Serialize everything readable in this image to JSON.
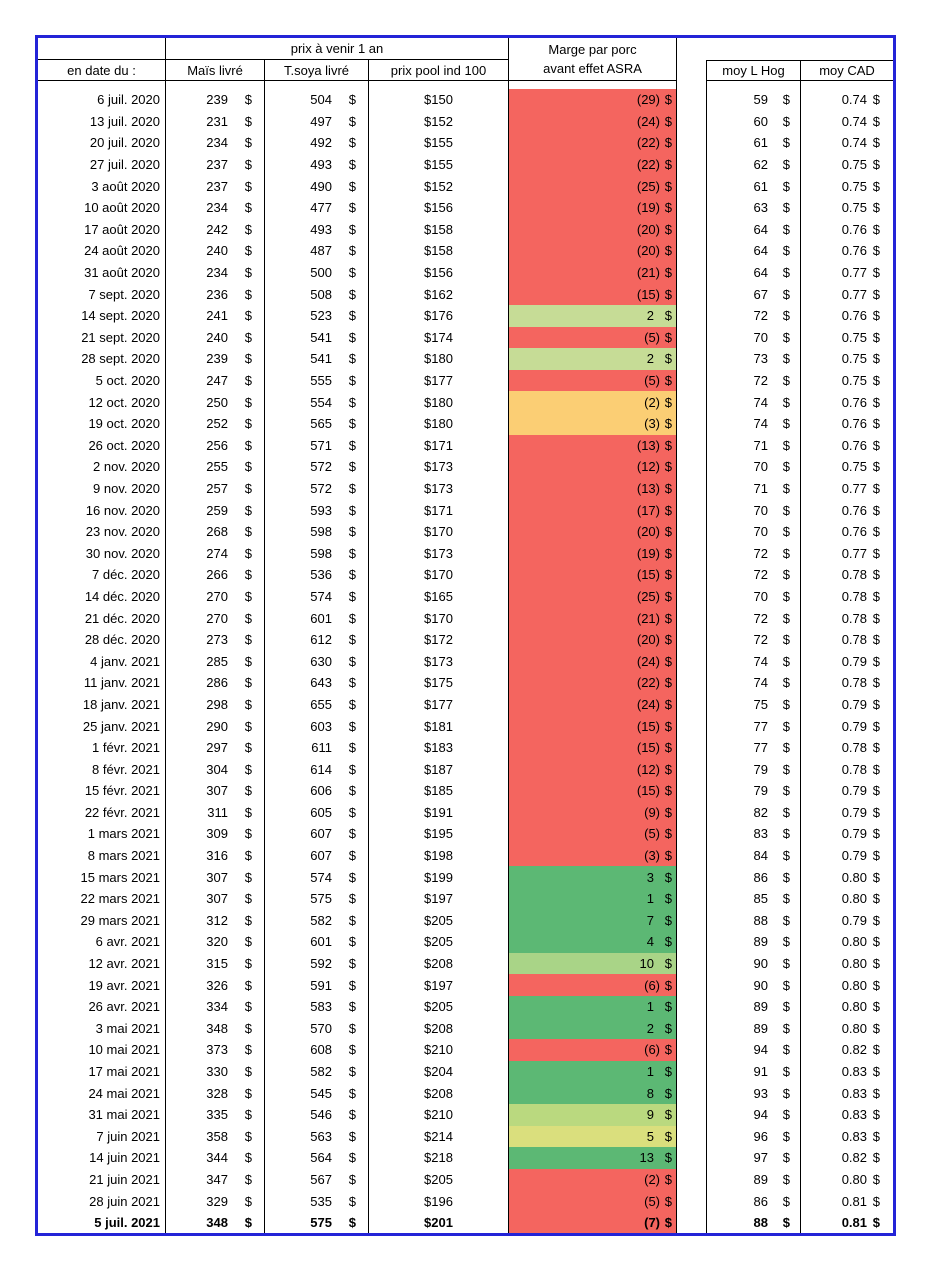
{
  "table": {
    "headers": {
      "date": "en date du :",
      "group": "prix à venir 1 an",
      "mais": "Maïs livré",
      "soya": "T.soya livré",
      "pool": "prix pool ind 100",
      "marge_line1": "Marge par porc",
      "marge_line2": "avant effet ASRA",
      "hog": "moy L Hog",
      "cad": "moy CAD"
    },
    "currency_symbol": "$",
    "colors": {
      "red": "#F4655F",
      "orange": "#FBCE74",
      "palegreen": "#C6DC96",
      "green": "#5CB874",
      "lightgreen": "#A9D487",
      "yellowgreen": "#BAD97F",
      "yellow": "#DADF7D"
    },
    "rows": [
      {
        "date": "6 juil. 2020",
        "mais": "239",
        "soya": "504",
        "pool": "$150",
        "marge": "(29)",
        "marge_color": "red",
        "hog": "59",
        "cad": "0.74",
        "bold": false
      },
      {
        "date": "13 juil. 2020",
        "mais": "231",
        "soya": "497",
        "pool": "$152",
        "marge": "(24)",
        "marge_color": "red",
        "hog": "60",
        "cad": "0.74",
        "bold": false
      },
      {
        "date": "20 juil. 2020",
        "mais": "234",
        "soya": "492",
        "pool": "$155",
        "marge": "(22)",
        "marge_color": "red",
        "hog": "61",
        "cad": "0.74",
        "bold": false
      },
      {
        "date": "27 juil. 2020",
        "mais": "237",
        "soya": "493",
        "pool": "$155",
        "marge": "(22)",
        "marge_color": "red",
        "hog": "62",
        "cad": "0.75",
        "bold": false
      },
      {
        "date": "3 août 2020",
        "mais": "237",
        "soya": "490",
        "pool": "$152",
        "marge": "(25)",
        "marge_color": "red",
        "hog": "61",
        "cad": "0.75",
        "bold": false
      },
      {
        "date": "10 août 2020",
        "mais": "234",
        "soya": "477",
        "pool": "$156",
        "marge": "(19)",
        "marge_color": "red",
        "hog": "63",
        "cad": "0.75",
        "bold": false
      },
      {
        "date": "17 août 2020",
        "mais": "242",
        "soya": "493",
        "pool": "$158",
        "marge": "(20)",
        "marge_color": "red",
        "hog": "64",
        "cad": "0.76",
        "bold": false
      },
      {
        "date": "24 août 2020",
        "mais": "240",
        "soya": "487",
        "pool": "$158",
        "marge": "(20)",
        "marge_color": "red",
        "hog": "64",
        "cad": "0.76",
        "bold": false
      },
      {
        "date": "31 août 2020",
        "mais": "234",
        "soya": "500",
        "pool": "$156",
        "marge": "(21)",
        "marge_color": "red",
        "hog": "64",
        "cad": "0.77",
        "bold": false
      },
      {
        "date": "7 sept. 2020",
        "mais": "236",
        "soya": "508",
        "pool": "$162",
        "marge": "(15)",
        "marge_color": "red",
        "hog": "67",
        "cad": "0.77",
        "bold": false
      },
      {
        "date": "14 sept. 2020",
        "mais": "241",
        "soya": "523",
        "pool": "$176",
        "marge": "2",
        "marge_color": "palegreen",
        "hog": "72",
        "cad": "0.76",
        "bold": false
      },
      {
        "date": "21 sept. 2020",
        "mais": "240",
        "soya": "541",
        "pool": "$174",
        "marge": "(5)",
        "marge_color": "red",
        "hog": "70",
        "cad": "0.75",
        "bold": false
      },
      {
        "date": "28 sept. 2020",
        "mais": "239",
        "soya": "541",
        "pool": "$180",
        "marge": "2",
        "marge_color": "palegreen",
        "hog": "73",
        "cad": "0.75",
        "bold": false
      },
      {
        "date": "5 oct. 2020",
        "mais": "247",
        "soya": "555",
        "pool": "$177",
        "marge": "(5)",
        "marge_color": "red",
        "hog": "72",
        "cad": "0.75",
        "bold": false
      },
      {
        "date": "12 oct. 2020",
        "mais": "250",
        "soya": "554",
        "pool": "$180",
        "marge": "(2)",
        "marge_color": "orange",
        "hog": "74",
        "cad": "0.76",
        "bold": false
      },
      {
        "date": "19 oct. 2020",
        "mais": "252",
        "soya": "565",
        "pool": "$180",
        "marge": "(3)",
        "marge_color": "orange",
        "hog": "74",
        "cad": "0.76",
        "bold": false
      },
      {
        "date": "26 oct. 2020",
        "mais": "256",
        "soya": "571",
        "pool": "$171",
        "marge": "(13)",
        "marge_color": "red",
        "hog": "71",
        "cad": "0.76",
        "bold": false
      },
      {
        "date": "2 nov. 2020",
        "mais": "255",
        "soya": "572",
        "pool": "$173",
        "marge": "(12)",
        "marge_color": "red",
        "hog": "70",
        "cad": "0.75",
        "bold": false
      },
      {
        "date": "9 nov. 2020",
        "mais": "257",
        "soya": "572",
        "pool": "$173",
        "marge": "(13)",
        "marge_color": "red",
        "hog": "71",
        "cad": "0.77",
        "bold": false
      },
      {
        "date": "16 nov. 2020",
        "mais": "259",
        "soya": "593",
        "pool": "$171",
        "marge": "(17)",
        "marge_color": "red",
        "hog": "70",
        "cad": "0.76",
        "bold": false
      },
      {
        "date": "23 nov. 2020",
        "mais": "268",
        "soya": "598",
        "pool": "$170",
        "marge": "(20)",
        "marge_color": "red",
        "hog": "70",
        "cad": "0.76",
        "bold": false
      },
      {
        "date": "30 nov. 2020",
        "mais": "274",
        "soya": "598",
        "pool": "$173",
        "marge": "(19)",
        "marge_color": "red",
        "hog": "72",
        "cad": "0.77",
        "bold": false
      },
      {
        "date": "7 déc. 2020",
        "mais": "266",
        "soya": "536",
        "pool": "$170",
        "marge": "(15)",
        "marge_color": "red",
        "hog": "72",
        "cad": "0.78",
        "bold": false
      },
      {
        "date": "14 déc. 2020",
        "mais": "270",
        "soya": "574",
        "pool": "$165",
        "marge": "(25)",
        "marge_color": "red",
        "hog": "70",
        "cad": "0.78",
        "bold": false
      },
      {
        "date": "21 déc. 2020",
        "mais": "270",
        "soya": "601",
        "pool": "$170",
        "marge": "(21)",
        "marge_color": "red",
        "hog": "72",
        "cad": "0.78",
        "bold": false
      },
      {
        "date": "28 déc. 2020",
        "mais": "273",
        "soya": "612",
        "pool": "$172",
        "marge": "(20)",
        "marge_color": "red",
        "hog": "72",
        "cad": "0.78",
        "bold": false
      },
      {
        "date": "4 janv. 2021",
        "mais": "285",
        "soya": "630",
        "pool": "$173",
        "marge": "(24)",
        "marge_color": "red",
        "hog": "74",
        "cad": "0.79",
        "bold": false
      },
      {
        "date": "11 janv. 2021",
        "mais": "286",
        "soya": "643",
        "pool": "$175",
        "marge": "(22)",
        "marge_color": "red",
        "hog": "74",
        "cad": "0.78",
        "bold": false
      },
      {
        "date": "18 janv. 2021",
        "mais": "298",
        "soya": "655",
        "pool": "$177",
        "marge": "(24)",
        "marge_color": "red",
        "hog": "75",
        "cad": "0.79",
        "bold": false
      },
      {
        "date": "25 janv. 2021",
        "mais": "290",
        "soya": "603",
        "pool": "$181",
        "marge": "(15)",
        "marge_color": "red",
        "hog": "77",
        "cad": "0.79",
        "bold": false
      },
      {
        "date": "1 févr. 2021",
        "mais": "297",
        "soya": "611",
        "pool": "$183",
        "marge": "(15)",
        "marge_color": "red",
        "hog": "77",
        "cad": "0.78",
        "bold": false
      },
      {
        "date": "8 févr. 2021",
        "mais": "304",
        "soya": "614",
        "pool": "$187",
        "marge": "(12)",
        "marge_color": "red",
        "hog": "79",
        "cad": "0.78",
        "bold": false
      },
      {
        "date": "15 févr. 2021",
        "mais": "307",
        "soya": "606",
        "pool": "$185",
        "marge": "(15)",
        "marge_color": "red",
        "hog": "79",
        "cad": "0.79",
        "bold": false
      },
      {
        "date": "22 févr. 2021",
        "mais": "311",
        "soya": "605",
        "pool": "$191",
        "marge": "(9)",
        "marge_color": "red",
        "hog": "82",
        "cad": "0.79",
        "bold": false
      },
      {
        "date": "1 mars 2021",
        "mais": "309",
        "soya": "607",
        "pool": "$195",
        "marge": "(5)",
        "marge_color": "red",
        "hog": "83",
        "cad": "0.79",
        "bold": false
      },
      {
        "date": "8 mars 2021",
        "mais": "316",
        "soya": "607",
        "pool": "$198",
        "marge": "(3)",
        "marge_color": "red",
        "hog": "84",
        "cad": "0.79",
        "bold": false
      },
      {
        "date": "15 mars 2021",
        "mais": "307",
        "soya": "574",
        "pool": "$199",
        "marge": "3",
        "marge_color": "green",
        "hog": "86",
        "cad": "0.80",
        "bold": false
      },
      {
        "date": "22 mars 2021",
        "mais": "307",
        "soya": "575",
        "pool": "$197",
        "marge": "1",
        "marge_color": "green",
        "hog": "85",
        "cad": "0.80",
        "bold": false
      },
      {
        "date": "29 mars 2021",
        "mais": "312",
        "soya": "582",
        "pool": "$205",
        "marge": "7",
        "marge_color": "green",
        "hog": "88",
        "cad": "0.79",
        "bold": false
      },
      {
        "date": "6 avr. 2021",
        "mais": "320",
        "soya": "601",
        "pool": "$205",
        "marge": "4",
        "marge_color": "green",
        "hog": "89",
        "cad": "0.80",
        "bold": false
      },
      {
        "date": "12 avr. 2021",
        "mais": "315",
        "soya": "592",
        "pool": "$208",
        "marge": "10",
        "marge_color": "lightgreen",
        "hog": "90",
        "cad": "0.80",
        "bold": false
      },
      {
        "date": "19 avr. 2021",
        "mais": "326",
        "soya": "591",
        "pool": "$197",
        "marge": "(6)",
        "marge_color": "red",
        "hog": "90",
        "cad": "0.80",
        "bold": false
      },
      {
        "date": "26 avr. 2021",
        "mais": "334",
        "soya": "583",
        "pool": "$205",
        "marge": "1",
        "marge_color": "green",
        "hog": "89",
        "cad": "0.80",
        "bold": false
      },
      {
        "date": "3 mai 2021",
        "mais": "348",
        "soya": "570",
        "pool": "$208",
        "marge": "2",
        "marge_color": "green",
        "hog": "89",
        "cad": "0.80",
        "bold": false
      },
      {
        "date": "10 mai 2021",
        "mais": "373",
        "soya": "608",
        "pool": "$210",
        "marge": "(6)",
        "marge_color": "red",
        "hog": "94",
        "cad": "0.82",
        "bold": false
      },
      {
        "date": "17 mai 2021",
        "mais": "330",
        "soya": "582",
        "pool": "$204",
        "marge": "1",
        "marge_color": "green",
        "hog": "91",
        "cad": "0.83",
        "bold": false
      },
      {
        "date": "24 mai 2021",
        "mais": "328",
        "soya": "545",
        "pool": "$208",
        "marge": "8",
        "marge_color": "green",
        "hog": "93",
        "cad": "0.83",
        "bold": false
      },
      {
        "date": "31 mai 2021",
        "mais": "335",
        "soya": "546",
        "pool": "$210",
        "marge": "9",
        "marge_color": "yellowgreen",
        "hog": "94",
        "cad": "0.83",
        "bold": false
      },
      {
        "date": "7 juin 2021",
        "mais": "358",
        "soya": "563",
        "pool": "$214",
        "marge": "5",
        "marge_color": "yellow",
        "hog": "96",
        "cad": "0.83",
        "bold": false
      },
      {
        "date": "14 juin 2021",
        "mais": "344",
        "soya": "564",
        "pool": "$218",
        "marge": "13",
        "marge_color": "green",
        "hog": "97",
        "cad": "0.82",
        "bold": false
      },
      {
        "date": "21 juin 2021",
        "mais": "347",
        "soya": "567",
        "pool": "$205",
        "marge": "(2)",
        "marge_color": "red",
        "hog": "89",
        "cad": "0.80",
        "bold": false
      },
      {
        "date": "28 juin 2021",
        "mais": "329",
        "soya": "535",
        "pool": "$196",
        "marge": "(5)",
        "marge_color": "red",
        "hog": "86",
        "cad": "0.81",
        "bold": false
      },
      {
        "date": "5 juil. 2021",
        "mais": "348",
        "soya": "575",
        "pool": "$201",
        "marge": "(7)",
        "marge_color": "red",
        "hog": "88",
        "cad": "0.81",
        "bold": true
      }
    ]
  }
}
